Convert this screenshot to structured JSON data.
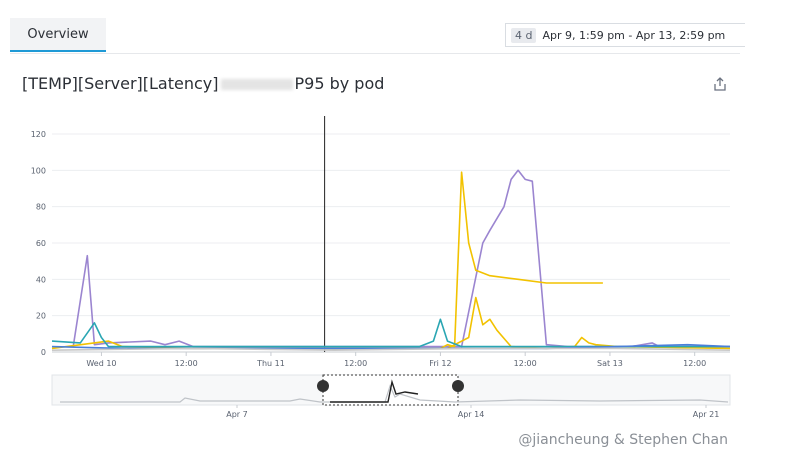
{
  "tabs": [
    {
      "label": "Overview",
      "active": true
    }
  ],
  "time_picker": {
    "badge": "4 d",
    "range": "Apr 9, 1:59 pm - Apr 13, 2:59 pm"
  },
  "widget": {
    "title_prefix": "[TEMP][Server][Latency]",
    "title_suffix": "P95 by pod",
    "export_icon": "share-export-icon"
  },
  "credit": "@jiancheung & Stephen Chan",
  "colors": {
    "accent": "#1f9ad6",
    "purple": "#9b85d0",
    "yellow": "#f2c200",
    "teal": "#2aa6b3",
    "blue": "#4a7fd9",
    "gray": "#c9c9c9"
  },
  "chart_data": {
    "type": "line",
    "ylim": [
      0,
      120
    ],
    "yticks": [
      0,
      20,
      40,
      60,
      80,
      100,
      120
    ],
    "xticks": [
      "Wed 10",
      "12:00",
      "Thu 11",
      "12:00",
      "Fri 12",
      "12:00",
      "Sat 13",
      "12:00"
    ],
    "x_range_hours": [
      0,
      96
    ],
    "marker_x": 38.6,
    "series": [
      {
        "color": "purple",
        "points": [
          [
            3,
            3
          ],
          [
            5,
            53
          ],
          [
            6,
            4
          ],
          [
            8,
            5
          ],
          [
            14,
            6
          ],
          [
            16,
            4
          ],
          [
            18,
            6
          ],
          [
            20,
            3
          ],
          [
            55,
            3
          ],
          [
            58,
            3
          ],
          [
            61,
            60
          ],
          [
            62,
            67
          ],
          [
            64,
            80
          ],
          [
            65,
            95
          ],
          [
            66,
            100
          ],
          [
            67,
            95
          ],
          [
            68,
            94
          ],
          [
            70,
            4
          ],
          [
            73,
            3
          ],
          [
            82,
            3
          ],
          [
            85,
            5
          ],
          [
            86,
            3
          ],
          [
            96,
            3
          ]
        ]
      },
      {
        "color": "yellow",
        "points": [
          [
            0,
            2
          ],
          [
            8,
            6
          ],
          [
            10,
            3
          ],
          [
            20,
            2
          ],
          [
            55,
            2
          ],
          [
            56,
            4
          ],
          [
            57,
            3
          ],
          [
            58,
            99
          ],
          [
            59,
            60
          ],
          [
            60,
            45
          ],
          [
            62,
            42
          ],
          [
            66,
            40
          ],
          [
            70,
            38
          ],
          [
            78,
            38
          ]
        ]
      },
      {
        "color": "yellow",
        "points": [
          [
            56,
            2
          ],
          [
            59,
            8
          ],
          [
            60,
            30
          ],
          [
            61,
            15
          ],
          [
            62,
            18
          ],
          [
            63,
            12
          ],
          [
            65,
            3
          ],
          [
            70,
            2
          ],
          [
            74,
            3
          ],
          [
            75,
            8
          ],
          [
            76,
            5
          ],
          [
            77,
            4
          ],
          [
            80,
            3
          ],
          [
            96,
            2
          ]
        ]
      },
      {
        "color": "teal",
        "points": [
          [
            0,
            6
          ],
          [
            4,
            5
          ],
          [
            6,
            16
          ],
          [
            7,
            8
          ],
          [
            8,
            3
          ],
          [
            20,
            3
          ],
          [
            38,
            3
          ],
          [
            50,
            3
          ],
          [
            52,
            3
          ],
          [
            54,
            6
          ],
          [
            55,
            18
          ],
          [
            56,
            6
          ],
          [
            58,
            3
          ],
          [
            60,
            3
          ],
          [
            75,
            3
          ],
          [
            96,
            3
          ]
        ]
      },
      {
        "color": "blue",
        "points": [
          [
            0,
            3
          ],
          [
            10,
            2
          ],
          [
            30,
            2
          ],
          [
            50,
            2
          ],
          [
            70,
            2
          ],
          [
            90,
            4
          ],
          [
            96,
            3
          ]
        ]
      },
      {
        "color": "gray",
        "points": [
          [
            0,
            1
          ],
          [
            20,
            2
          ],
          [
            40,
            1
          ],
          [
            60,
            2
          ],
          [
            80,
            2
          ],
          [
            96,
            1
          ]
        ]
      }
    ],
    "navigator": {
      "xticks": [
        "Apr 7",
        "Apr 14",
        "Apr 21"
      ]
    }
  }
}
